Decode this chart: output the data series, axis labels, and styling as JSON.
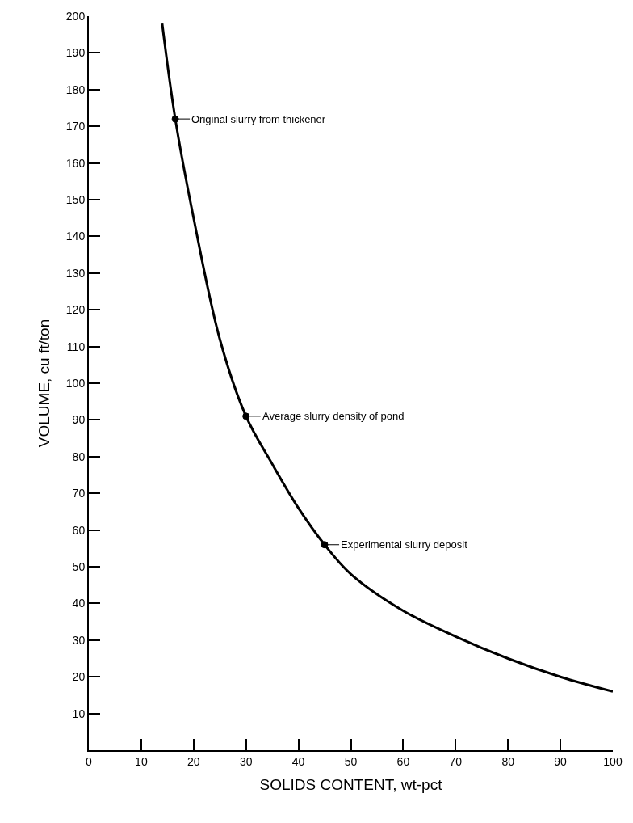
{
  "chart_data": {
    "type": "line",
    "xlabel": "SOLIDS CONTENT, wt-pct",
    "ylabel": "VOLUME, cu ft/ton",
    "xlim": [
      0,
      100
    ],
    "xticks": [
      0,
      10,
      20,
      30,
      40,
      50,
      60,
      70,
      80,
      90,
      100
    ],
    "ylim": [
      0,
      200
    ],
    "yticks": [
      10,
      20,
      30,
      40,
      50,
      60,
      70,
      80,
      90,
      100,
      110,
      120,
      130,
      140,
      150,
      160,
      170,
      180,
      190,
      200
    ],
    "series": [
      {
        "color": "#000000",
        "line_style": "solid",
        "x": [
          14,
          16.5,
          20,
          25,
          30,
          35,
          40,
          45,
          50,
          60,
          70,
          80,
          90,
          100
        ],
        "values": [
          198,
          172,
          145,
          112,
          91,
          78,
          66,
          56,
          48,
          38,
          31,
          25,
          20,
          16
        ]
      },
      {
        "type": "scatter",
        "color": "#000000",
        "marker": "circle",
        "x": [
          16.5,
          30,
          45
        ],
        "values": [
          172,
          91,
          56
        ]
      }
    ],
    "annotations": [
      {
        "text": "Original slurry from thickener",
        "x": 16.5,
        "y": 172
      },
      {
        "text": "Average slurry density of pond",
        "x": 30,
        "y": 91
      },
      {
        "text": "Experimental slurry deposit",
        "x": 45,
        "y": 56
      }
    ]
  }
}
